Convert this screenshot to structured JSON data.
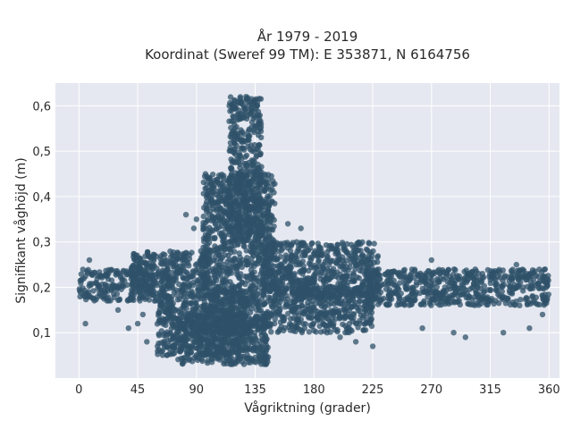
{
  "chart_data": {
    "type": "scatter",
    "title_lines": [
      "År 1979 - 2019",
      "Koordinat (Sweref 99 TM): E 353871, N 6164756"
    ],
    "xlabel": "Vågriktning (grader)",
    "ylabel": "Signifikant våghöjd (m)",
    "xlim": [
      -18,
      368
    ],
    "ylim": [
      0.0,
      0.65
    ],
    "x_ticks": [
      0,
      45,
      90,
      135,
      180,
      225,
      270,
      315,
      360
    ],
    "x_tick_labels": [
      "0",
      "45",
      "90",
      "135",
      "180",
      "225",
      "270",
      "315",
      "360"
    ],
    "y_ticks": [
      0.1,
      0.2,
      0.3,
      0.4,
      0.5,
      0.6
    ],
    "y_tick_labels": [
      "0,1",
      "0,2",
      "0,3",
      "0,4",
      "0,5",
      "0,6"
    ],
    "grid": true,
    "background": "#e5e8f0",
    "marker_color": "#2f5169",
    "point_clouds": [
      {
        "x_range": [
          0,
          70
        ],
        "y_range": [
          0.17,
          0.24
        ]
      },
      {
        "x_range": [
          40,
          100
        ],
        "y_range": [
          0.2,
          0.28
        ]
      },
      {
        "x_range": [
          60,
          130
        ],
        "y_range": [
          0.05,
          0.2
        ]
      },
      {
        "x_range": [
          75,
          145
        ],
        "y_range": [
          0.03,
          0.14
        ]
      },
      {
        "x_range": [
          95,
          150
        ],
        "y_range": [
          0.1,
          0.45
        ]
      },
      {
        "x_range": [
          115,
          140
        ],
        "y_range": [
          0.3,
          0.62
        ]
      },
      {
        "x_range": [
          140,
          230
        ],
        "y_range": [
          0.18,
          0.3
        ]
      },
      {
        "x_range": [
          150,
          225
        ],
        "y_range": [
          0.1,
          0.2
        ]
      },
      {
        "x_range": [
          220,
          360
        ],
        "y_range": [
          0.16,
          0.24
        ]
      }
    ],
    "sample_points": [
      [
        8,
        0.26
      ],
      [
        5,
        0.12
      ],
      [
        30,
        0.15
      ],
      [
        38,
        0.11
      ],
      [
        45,
        0.12
      ],
      [
        49,
        0.14
      ],
      [
        52,
        0.08
      ],
      [
        58,
        0.17
      ],
      [
        82,
        0.36
      ],
      [
        88,
        0.33
      ],
      [
        90,
        0.35
      ],
      [
        100,
        0.38
      ],
      [
        108,
        0.37
      ],
      [
        125,
        0.58
      ],
      [
        128,
        0.62
      ],
      [
        131,
        0.61
      ],
      [
        160,
        0.34
      ],
      [
        170,
        0.33
      ],
      [
        190,
        0.1
      ],
      [
        200,
        0.09
      ],
      [
        212,
        0.08
      ],
      [
        225,
        0.07
      ],
      [
        263,
        0.11
      ],
      [
        270,
        0.26
      ],
      [
        287,
        0.1
      ],
      [
        296,
        0.09
      ],
      [
        325,
        0.1
      ],
      [
        335,
        0.25
      ],
      [
        345,
        0.11
      ],
      [
        355,
        0.14
      ]
    ]
  }
}
